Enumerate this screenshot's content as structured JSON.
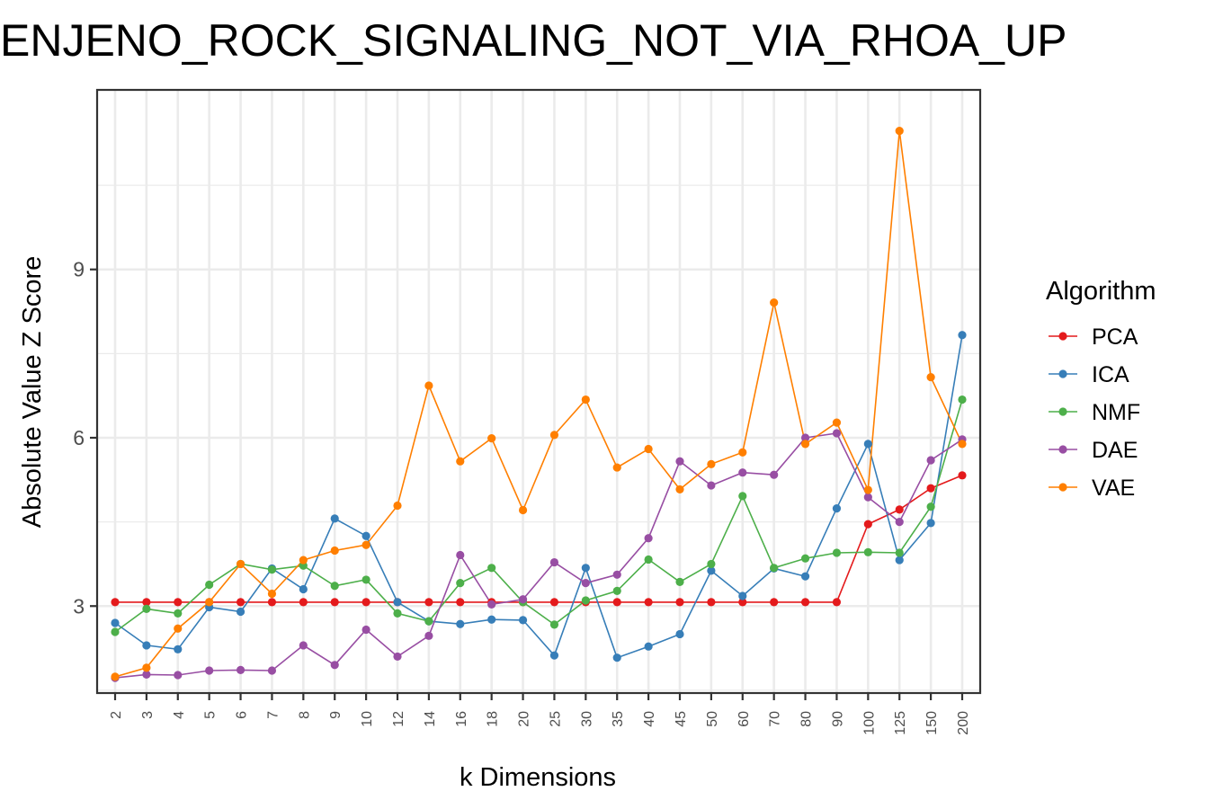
{
  "chart_data": {
    "type": "line",
    "title": "ENJENO_ROCK_SIGNALING_NOT_VIA_RHOA_UP",
    "xlabel": "k Dimensions",
    "ylabel": "Absolute Value Z Score",
    "categories": [
      "2",
      "3",
      "4",
      "5",
      "6",
      "7",
      "8",
      "9",
      "10",
      "12",
      "14",
      "16",
      "18",
      "20",
      "25",
      "30",
      "35",
      "40",
      "45",
      "50",
      "60",
      "70",
      "80",
      "90",
      "100",
      "125",
      "150",
      "200"
    ],
    "ylim": [
      1.45,
      12.2
    ],
    "yticks": [
      3,
      6,
      9
    ],
    "grid": true,
    "legend": {
      "title": "Algorithm",
      "placement": "right"
    },
    "series": [
      {
        "name": "PCA",
        "color": "#e41a1c",
        "values": [
          3.07,
          3.07,
          3.07,
          3.07,
          3.07,
          3.07,
          3.07,
          3.07,
          3.07,
          3.07,
          3.07,
          3.07,
          3.07,
          3.07,
          3.07,
          3.07,
          3.07,
          3.07,
          3.07,
          3.07,
          3.07,
          3.07,
          3.07,
          3.07,
          4.46,
          4.72,
          5.1,
          5.33
        ]
      },
      {
        "name": "ICA",
        "color": "#377eb8",
        "values": [
          2.7,
          2.3,
          2.23,
          2.98,
          2.9,
          3.67,
          3.3,
          4.56,
          4.25,
          3.07,
          2.73,
          2.68,
          2.76,
          2.75,
          2.12,
          3.68,
          2.08,
          2.28,
          2.5,
          3.63,
          3.18,
          3.67,
          3.53,
          4.74,
          5.89,
          3.82,
          4.48,
          7.83
        ]
      },
      {
        "name": "NMF",
        "color": "#4daf4a",
        "values": [
          2.54,
          2.95,
          2.87,
          3.38,
          3.75,
          3.65,
          3.72,
          3.36,
          3.47,
          2.87,
          2.73,
          3.41,
          3.68,
          3.07,
          2.67,
          3.1,
          3.27,
          3.83,
          3.43,
          3.75,
          4.96,
          3.68,
          3.85,
          3.95,
          3.96,
          3.95,
          4.77,
          6.68
        ]
      },
      {
        "name": "DAE",
        "color": "#984ea3",
        "values": [
          1.72,
          1.78,
          1.77,
          1.85,
          1.86,
          1.85,
          2.3,
          1.95,
          2.58,
          2.1,
          2.47,
          3.91,
          3.03,
          3.12,
          3.78,
          3.41,
          3.56,
          4.21,
          5.58,
          5.15,
          5.38,
          5.34,
          6.0,
          6.08,
          4.94,
          4.5,
          5.6,
          5.97
        ]
      },
      {
        "name": "VAE",
        "color": "#ff7f00",
        "values": [
          1.74,
          1.9,
          2.6,
          3.07,
          3.75,
          3.22,
          3.82,
          3.99,
          4.09,
          4.79,
          6.93,
          5.58,
          5.99,
          4.71,
          6.05,
          6.68,
          5.47,
          5.8,
          5.08,
          5.53,
          5.74,
          8.41,
          5.89,
          6.27,
          5.07,
          11.47,
          7.08,
          5.89
        ]
      }
    ]
  }
}
